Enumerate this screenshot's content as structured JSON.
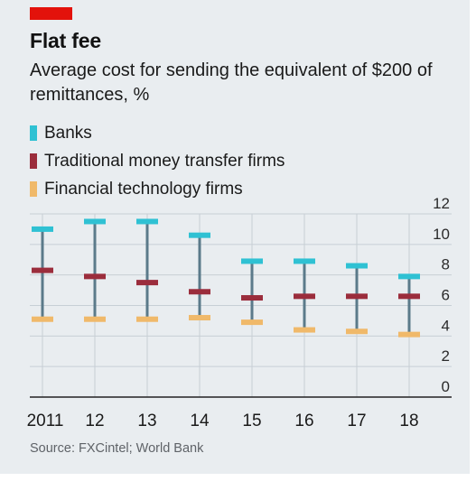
{
  "header": {
    "title": "Flat fee",
    "subtitle": "Average cost for sending the equivalent of $200 of remittances, %"
  },
  "source": "Source: FXCintel; World Bank",
  "colors": {
    "background": "#e9edf0",
    "brand_tag": "#e3120b",
    "banks": "#2fc1d3",
    "traditional": "#9b2d3c",
    "fintech": "#f0b96a",
    "range_line": "#5b7a8a",
    "grid": "#c7cfd5",
    "axis": "#222222"
  },
  "chart_data": {
    "type": "range",
    "title": "Flat fee",
    "subtitle": "Average cost for sending the equivalent of $200 of remittances, %",
    "categories": [
      "2011",
      "12",
      "13",
      "14",
      "15",
      "16",
      "17",
      "18"
    ],
    "series": [
      {
        "name": "Banks",
        "color": "#2fc1d3",
        "values": [
          11.0,
          11.5,
          11.5,
          10.6,
          8.9,
          8.9,
          8.6,
          7.9
        ]
      },
      {
        "name": "Traditional money transfer firms",
        "color": "#9b2d3c",
        "values": [
          8.3,
          7.9,
          7.5,
          6.9,
          6.5,
          6.6,
          6.6,
          6.6
        ]
      },
      {
        "name": "Financial technology firms",
        "color": "#f0b96a",
        "values": [
          5.1,
          5.1,
          5.1,
          5.2,
          4.9,
          4.4,
          4.3,
          4.1
        ]
      }
    ],
    "yticks": [
      "12",
      "10",
      "8",
      "6",
      "4",
      "2",
      "0"
    ],
    "ylim": [
      0,
      12
    ],
    "y_axis_position": "right",
    "grid": true,
    "legend": "top-left"
  }
}
